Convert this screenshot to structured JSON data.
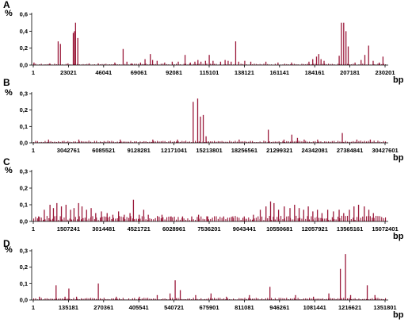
{
  "chart_data": [
    {
      "type": "bar",
      "panel_label": "A",
      "ylabel": "%",
      "xlabel": "bp",
      "ylim": [
        0,
        0.6
      ],
      "yticks": [
        "0,0",
        "0,2",
        "0,4",
        "0,6"
      ],
      "xticks": [
        "1",
        "23021",
        "46041",
        "69061",
        "92081",
        "115101",
        "138121",
        "161141",
        "184161",
        "207181",
        "230201"
      ],
      "x_end": 236000,
      "baseline": 0.01,
      "values": [
        [
          1500,
          0.03
        ],
        [
          12000,
          0.02
        ],
        [
          17500,
          0.28
        ],
        [
          19000,
          0.25
        ],
        [
          24000,
          0.02
        ],
        [
          27500,
          0.38
        ],
        [
          28300,
          0.4
        ],
        [
          29000,
          0.5
        ],
        [
          30500,
          0.32
        ],
        [
          38000,
          0.02
        ],
        [
          44000,
          0.02
        ],
        [
          55000,
          0.03
        ],
        [
          60500,
          0.19
        ],
        [
          63000,
          0.04
        ],
        [
          66000,
          0.02
        ],
        [
          72000,
          0.03
        ],
        [
          75000,
          0.07
        ],
        [
          78500,
          0.13
        ],
        [
          80000,
          0.06
        ],
        [
          83000,
          0.05
        ],
        [
          88000,
          0.03
        ],
        [
          93000,
          0.04
        ],
        [
          97000,
          0.04
        ],
        [
          101500,
          0.12
        ],
        [
          105000,
          0.03
        ],
        [
          108000,
          0.04
        ],
        [
          110000,
          0.06
        ],
        [
          112000,
          0.04
        ],
        [
          115000,
          0.05
        ],
        [
          117500,
          0.12
        ],
        [
          120000,
          0.05
        ],
        [
          125000,
          0.04
        ],
        [
          128000,
          0.06
        ],
        [
          130000,
          0.05
        ],
        [
          132000,
          0.04
        ],
        [
          135000,
          0.28
        ],
        [
          137000,
          0.04
        ],
        [
          141000,
          0.05
        ],
        [
          145000,
          0.04
        ],
        [
          155000,
          0.04
        ],
        [
          163000,
          0.03
        ],
        [
          172000,
          0.03
        ],
        [
          183500,
          0.04
        ],
        [
          186000,
          0.07
        ],
        [
          188500,
          0.1
        ],
        [
          190000,
          0.13
        ],
        [
          191500,
          0.07
        ],
        [
          193500,
          0.05
        ],
        [
          203500,
          0.11
        ],
        [
          205000,
          0.5
        ],
        [
          206500,
          0.5
        ],
        [
          208000,
          0.4
        ],
        [
          209500,
          0.22
        ],
        [
          214000,
          0.03
        ],
        [
          218000,
          0.06
        ],
        [
          220500,
          0.12
        ],
        [
          223000,
          0.23
        ],
        [
          226000,
          0.05
        ],
        [
          230000,
          0.03
        ],
        [
          232500,
          0.1
        ]
      ]
    },
    {
      "type": "bar",
      "panel_label": "B",
      "ylabel": "%",
      "xlabel": "bp",
      "ylim": [
        0,
        0.3
      ],
      "yticks": [
        "0,0",
        "0,1",
        "0,2",
        "0,3"
      ],
      "xticks": [
        "1",
        "3042761",
        "6085521",
        "9128281",
        "12171041",
        "15213801",
        "18256561",
        "21299321",
        "24342081",
        "27384841",
        "30427601"
      ],
      "x_end": 31800000,
      "baseline": 0.008,
      "values": [
        [
          14400000,
          0.25
        ],
        [
          14800000,
          0.27
        ],
        [
          15050000,
          0.16
        ],
        [
          15300000,
          0.17
        ],
        [
          15550000,
          0.04
        ],
        [
          21100000,
          0.08
        ],
        [
          22500000,
          0.02
        ],
        [
          23200000,
          0.05
        ],
        [
          23700000,
          0.03
        ],
        [
          24300000,
          0.02
        ],
        [
          25500000,
          0.02
        ],
        [
          27700000,
          0.06
        ],
        [
          29000000,
          0.02
        ],
        [
          30200000,
          0.02
        ],
        [
          1500000,
          0.02
        ],
        [
          4200000,
          0.02
        ],
        [
          7900000,
          0.02
        ],
        [
          10800000,
          0.02
        ],
        [
          13000000,
          0.02
        ],
        [
          18500000,
          0.02
        ]
      ]
    },
    {
      "type": "bar",
      "panel_label": "C",
      "ylabel": "%",
      "xlabel": "bp",
      "ylim": [
        0,
        0.3
      ],
      "yticks": [
        "0,0",
        "0,1",
        "0,2",
        "0,3"
      ],
      "xticks": [
        "1",
        "1507241",
        "3014481",
        "4521721",
        "6028961",
        "7536201",
        "9043441",
        "10550681",
        "12057921",
        "13565161",
        "15072401"
      ],
      "x_end": 15600000,
      "baseline": 0.02,
      "values": [
        [
          300000,
          0.03
        ],
        [
          550000,
          0.07
        ],
        [
          800000,
          0.1
        ],
        [
          950000,
          0.08
        ],
        [
          1100000,
          0.11
        ],
        [
          1300000,
          0.09
        ],
        [
          1500000,
          0.1
        ],
        [
          1700000,
          0.07
        ],
        [
          1850000,
          0.08
        ],
        [
          2050000,
          0.11
        ],
        [
          2200000,
          0.09
        ],
        [
          2400000,
          0.07
        ],
        [
          2600000,
          0.08
        ],
        [
          2800000,
          0.05
        ],
        [
          3050000,
          0.06
        ],
        [
          3300000,
          0.05
        ],
        [
          3550000,
          0.04
        ],
        [
          3800000,
          0.06
        ],
        [
          4050000,
          0.04
        ],
        [
          4300000,
          0.05
        ],
        [
          4450000,
          0.13
        ],
        [
          4700000,
          0.04
        ],
        [
          4900000,
          0.07
        ],
        [
          5100000,
          0.04
        ],
        [
          5500000,
          0.03
        ],
        [
          5700000,
          0.04
        ],
        [
          6100000,
          0.03
        ],
        [
          6600000,
          0.03
        ],
        [
          7000000,
          0.03
        ],
        [
          7300000,
          0.04
        ],
        [
          7700000,
          0.03
        ],
        [
          8400000,
          0.03
        ],
        [
          8800000,
          0.03
        ],
        [
          9300000,
          0.03
        ],
        [
          9700000,
          0.04
        ],
        [
          10000000,
          0.07
        ],
        [
          10250000,
          0.09
        ],
        [
          10450000,
          0.12
        ],
        [
          10600000,
          0.11
        ],
        [
          10800000,
          0.07
        ],
        [
          11050000,
          0.09
        ],
        [
          11300000,
          0.08
        ],
        [
          11500000,
          0.1
        ],
        [
          11700000,
          0.08
        ],
        [
          11900000,
          0.07
        ],
        [
          12100000,
          0.09
        ],
        [
          12300000,
          0.06
        ],
        [
          12500000,
          0.07
        ],
        [
          12700000,
          0.05
        ],
        [
          12950000,
          0.07
        ],
        [
          13200000,
          0.06
        ],
        [
          13450000,
          0.07
        ],
        [
          13650000,
          0.05
        ],
        [
          13900000,
          0.07
        ],
        [
          14100000,
          0.09
        ],
        [
          14300000,
          0.1
        ],
        [
          14550000,
          0.09
        ],
        [
          14750000,
          0.07
        ],
        [
          14950000,
          0.05
        ]
      ]
    },
    {
      "type": "bar",
      "panel_label": "D",
      "ylabel": "%",
      "xlabel": "bp",
      "ylim": [
        0,
        0.3
      ],
      "yticks": [
        "0,0",
        "0,1",
        "0,2",
        "0,3"
      ],
      "xticks": [
        "1",
        "135181",
        "270361",
        "405541",
        "540721",
        "675901",
        "811081",
        "946261",
        "1081441",
        "1216621",
        "1351801"
      ],
      "x_end": 1392000,
      "baseline": 0.008,
      "values": [
        [
          30000,
          0.02
        ],
        [
          95000,
          0.09
        ],
        [
          130000,
          0.02
        ],
        [
          145000,
          0.07
        ],
        [
          175000,
          0.02
        ],
        [
          260000,
          0.1
        ],
        [
          330000,
          0.02
        ],
        [
          420000,
          0.02
        ],
        [
          490000,
          0.03
        ],
        [
          540000,
          0.04
        ],
        [
          560000,
          0.12
        ],
        [
          580000,
          0.06
        ],
        [
          640000,
          0.03
        ],
        [
          700000,
          0.04
        ],
        [
          760000,
          0.02
        ],
        [
          850000,
          0.03
        ],
        [
          930000,
          0.08
        ],
        [
          1030000,
          0.03
        ],
        [
          1100000,
          0.02
        ],
        [
          1160000,
          0.04
        ],
        [
          1205000,
          0.19
        ],
        [
          1225000,
          0.28
        ],
        [
          1245000,
          0.03
        ],
        [
          1310000,
          0.09
        ],
        [
          1340000,
          0.03
        ]
      ]
    }
  ]
}
